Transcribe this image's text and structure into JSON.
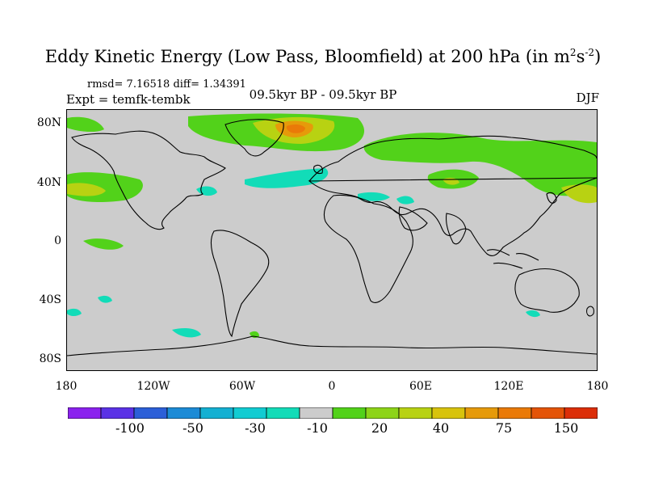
{
  "title": {
    "main": "Eddy Kinetic Energy (Low Pass, Bloomfield) at 200 hPa (in m",
    "sup1": "2",
    "mid": "s",
    "sup2": "-2",
    "close": ")"
  },
  "stats": "rmsd= 7.16518 diff= 1.34391",
  "experiment": "Expt = temfk-tembk",
  "period": "09.5kyr BP - 09.5kyr BP",
  "season": "DJF",
  "axes": {
    "y_labels": [
      "80N",
      "40N",
      "0",
      "40S",
      "80S"
    ],
    "x_labels": [
      "180",
      "120W",
      "60W",
      "0",
      "60E",
      "120E",
      "180"
    ]
  },
  "colorbar": {
    "labels": [
      "-100",
      "-50",
      "-30",
      "-10",
      "20",
      "40",
      "75",
      "150"
    ],
    "colors": [
      "#8b22ee",
      "#5b32e6",
      "#2c5fd8",
      "#1c8bd6",
      "#14b0d2",
      "#11ccd2",
      "#12dcb8",
      "#cccccc",
      "#52d21a",
      "#8dd418",
      "#b8d212",
      "#d8c30c",
      "#e69a0a",
      "#ea7a08",
      "#e45408",
      "#dc2e08"
    ]
  },
  "map_colors": {
    "background": "#cccccc",
    "land_outline": "#000000"
  }
}
